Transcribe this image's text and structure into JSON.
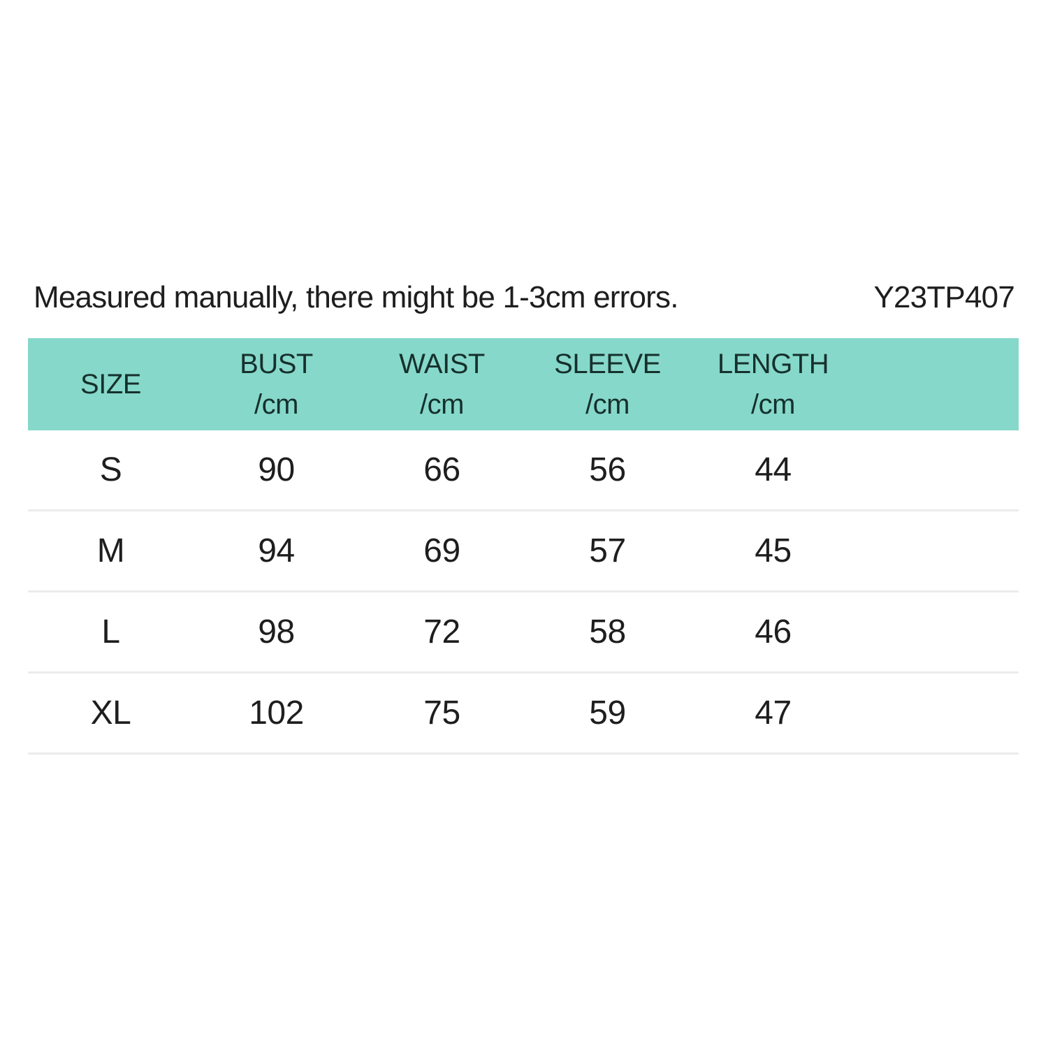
{
  "note": {
    "text": "Measured manually, there might be 1-3cm errors.",
    "product_code": "Y23TP407"
  },
  "table_header": {
    "size": "SIZE",
    "cols": [
      {
        "label": "BUST",
        "unit": "/cm"
      },
      {
        "label": "WAIST",
        "unit": "/cm"
      },
      {
        "label": "SLEEVE",
        "unit": "/cm"
      },
      {
        "label": "LENGTH",
        "unit": "/cm"
      }
    ]
  },
  "chart_data": {
    "type": "table",
    "columns": [
      "SIZE",
      "BUST /cm",
      "WAIST /cm",
      "SLEEVE /cm",
      "LENGTH /cm"
    ],
    "rows": [
      [
        "S",
        90,
        66,
        56,
        44
      ],
      [
        "M",
        94,
        69,
        57,
        45
      ],
      [
        "L",
        98,
        72,
        58,
        46
      ],
      [
        "XL",
        102,
        75,
        59,
        47
      ]
    ]
  },
  "colors": {
    "header_bg": "#86d8ca",
    "divider": "#ececec",
    "text_primary": "#1e1e1e",
    "header_text": "#16302c"
  }
}
